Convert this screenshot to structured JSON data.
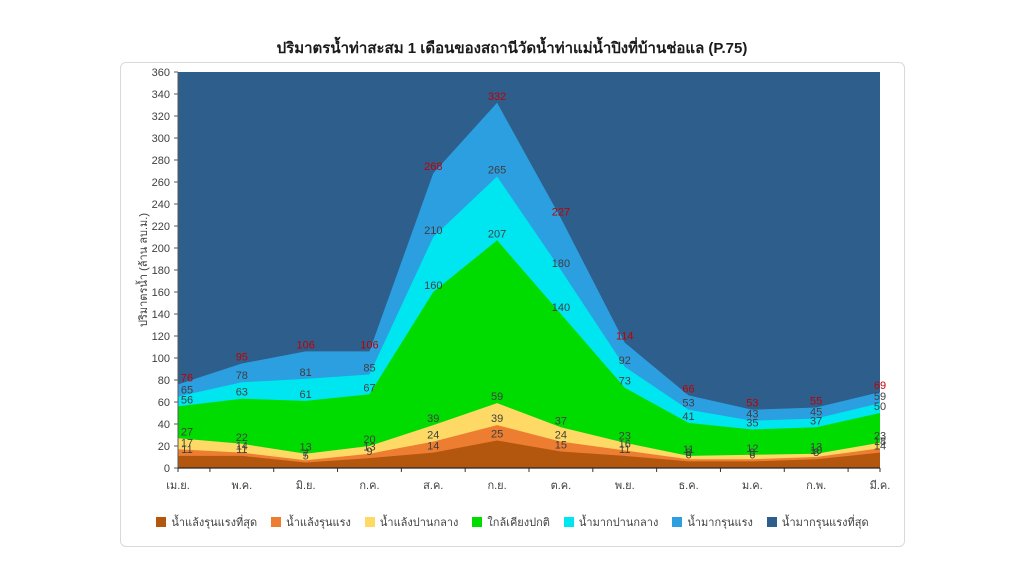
{
  "title": "ปริมาตรน้ำท่าสะสม 1 เดือนของสถานีวัดน้ำท่าแม่น้ำปิงที่บ้านช่อแล (P.75)",
  "chart_data": {
    "type": "area",
    "subtype": "stacked-percentile-bands",
    "title": "ปริมาตรน้ำท่าสะสม 1 เดือนของสถานีวัดน้ำท่าแม่น้ำปิงที่บ้านช่อแล (P.75)",
    "xlabel": "",
    "ylabel": "ปริมาตรน้ำ (ล้าน ลบ.ม.)",
    "ylim": [
      0,
      360
    ],
    "ytick_step": 20,
    "grid": false,
    "legend_position": "bottom",
    "categories": [
      "เม.ย.",
      "พ.ค.",
      "มิ.ย.",
      "ก.ค.",
      "ส.ค.",
      "ก.ย.",
      "ต.ค.",
      "พ.ย.",
      "ธ.ค.",
      "ม.ค.",
      "ก.พ.",
      "มี.ค."
    ],
    "series": [
      {
        "name": "น้ำแล้งรุนแรงที่สุด",
        "color": "#B4570E",
        "label_color": "#3F3F3F",
        "values": [
          11,
          11,
          5,
          9,
          14,
          25,
          15,
          11,
          6,
          6,
          8,
          14
        ]
      },
      {
        "name": "น้ำแล้งรุนแรง",
        "color": "#ED7D31",
        "label_color": "#3F3F3F",
        "values": [
          17,
          14,
          7,
          13,
          24,
          39,
          24,
          16,
          8,
          8,
          10,
          18
        ]
      },
      {
        "name": "น้ำแล้งปานกลาง",
        "color": "#FFD966",
        "label_color": "#3F3F3F",
        "values": [
          27,
          22,
          13,
          20,
          39,
          59,
          37,
          23,
          11,
          12,
          13,
          23
        ]
      },
      {
        "name": "ใกล้เคียงปกติ",
        "color": "#00DC00",
        "label_color": "#3F3F3F",
        "values": [
          56,
          63,
          61,
          67,
          160,
          207,
          140,
          73,
          41,
          35,
          37,
          50
        ]
      },
      {
        "name": "น้ำมากปานกลาง",
        "color": "#00E6F0",
        "label_color": "#3F3F3F",
        "values": [
          65,
          78,
          81,
          85,
          210,
          265,
          180,
          92,
          53,
          43,
          45,
          59
        ]
      },
      {
        "name": "น้ำมากรุนแรง",
        "color": "#2B9FE0",
        "label_color": "#C00000",
        "values": [
          76,
          95,
          106,
          106,
          268,
          332,
          227,
          114,
          66,
          53,
          55,
          69
        ]
      },
      {
        "name": "น้ำมากรุนแรงที่สุด",
        "color": "#2E5E8C",
        "fill_to_top": true,
        "values": []
      }
    ]
  },
  "legend": {
    "items": [
      {
        "label": "น้ำแล้งรุนแรงที่สุด",
        "color": "#B4570E"
      },
      {
        "label": "น้ำแล้งรุนแรง",
        "color": "#ED7D31"
      },
      {
        "label": "น้ำแล้งปานกลาง",
        "color": "#FFD966"
      },
      {
        "label": "ใกล้เคียงปกติ",
        "color": "#00DC00"
      },
      {
        "label": "น้ำมากปานกลาง",
        "color": "#00E6F0"
      },
      {
        "label": "น้ำมากรุนแรง",
        "color": "#2B9FE0"
      },
      {
        "label": "น้ำมากรุนแรงที่สุด",
        "color": "#2E5E8C"
      }
    ]
  },
  "axes": {
    "y_ticks": [
      "360",
      "340",
      "320",
      "300",
      "280",
      "260",
      "240",
      "220",
      "200",
      "180",
      "160",
      "140",
      "120",
      "100",
      "80",
      "60",
      "40",
      "20",
      "0"
    ],
    "text_color": "#404040"
  }
}
